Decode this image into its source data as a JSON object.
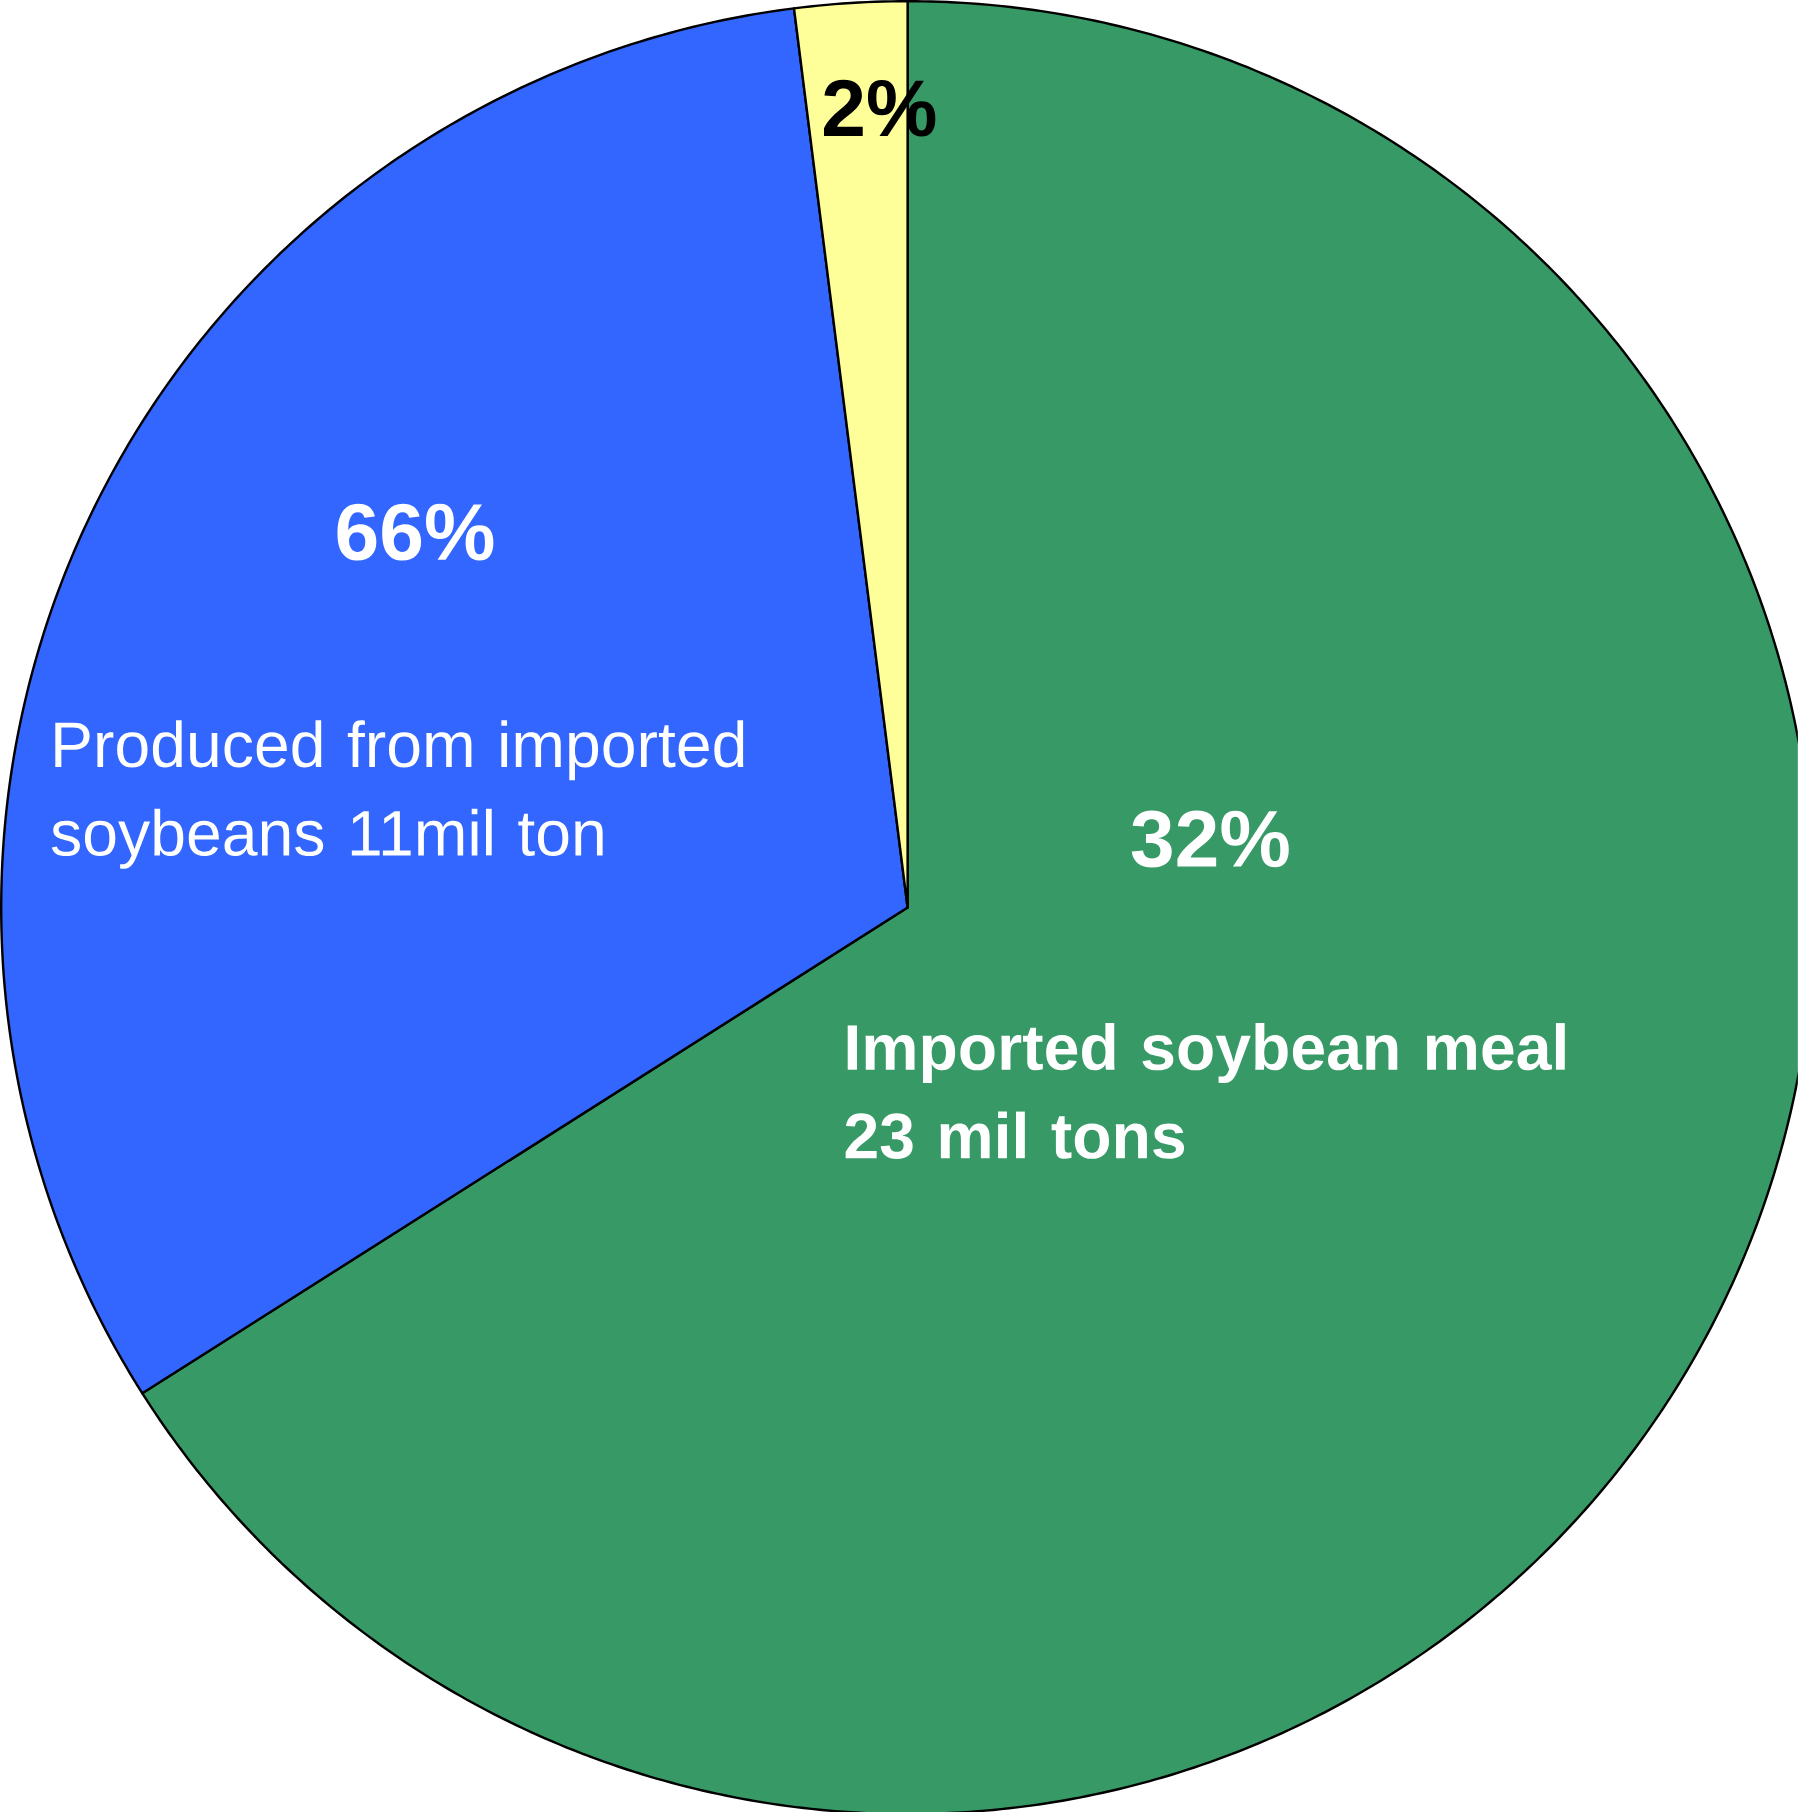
{
  "chart_data": {
    "type": "pie",
    "categories": [
      "Imported soybean meal 23 mil tons",
      "Produced from imported soybeans 11mil ton",
      null
    ],
    "values": [
      66,
      32,
      2
    ],
    "colors": [
      "#379a66",
      "#3366ff",
      "#ffff99"
    ],
    "annotations": [
      "32%",
      "66%",
      "2%"
    ]
  }
}
